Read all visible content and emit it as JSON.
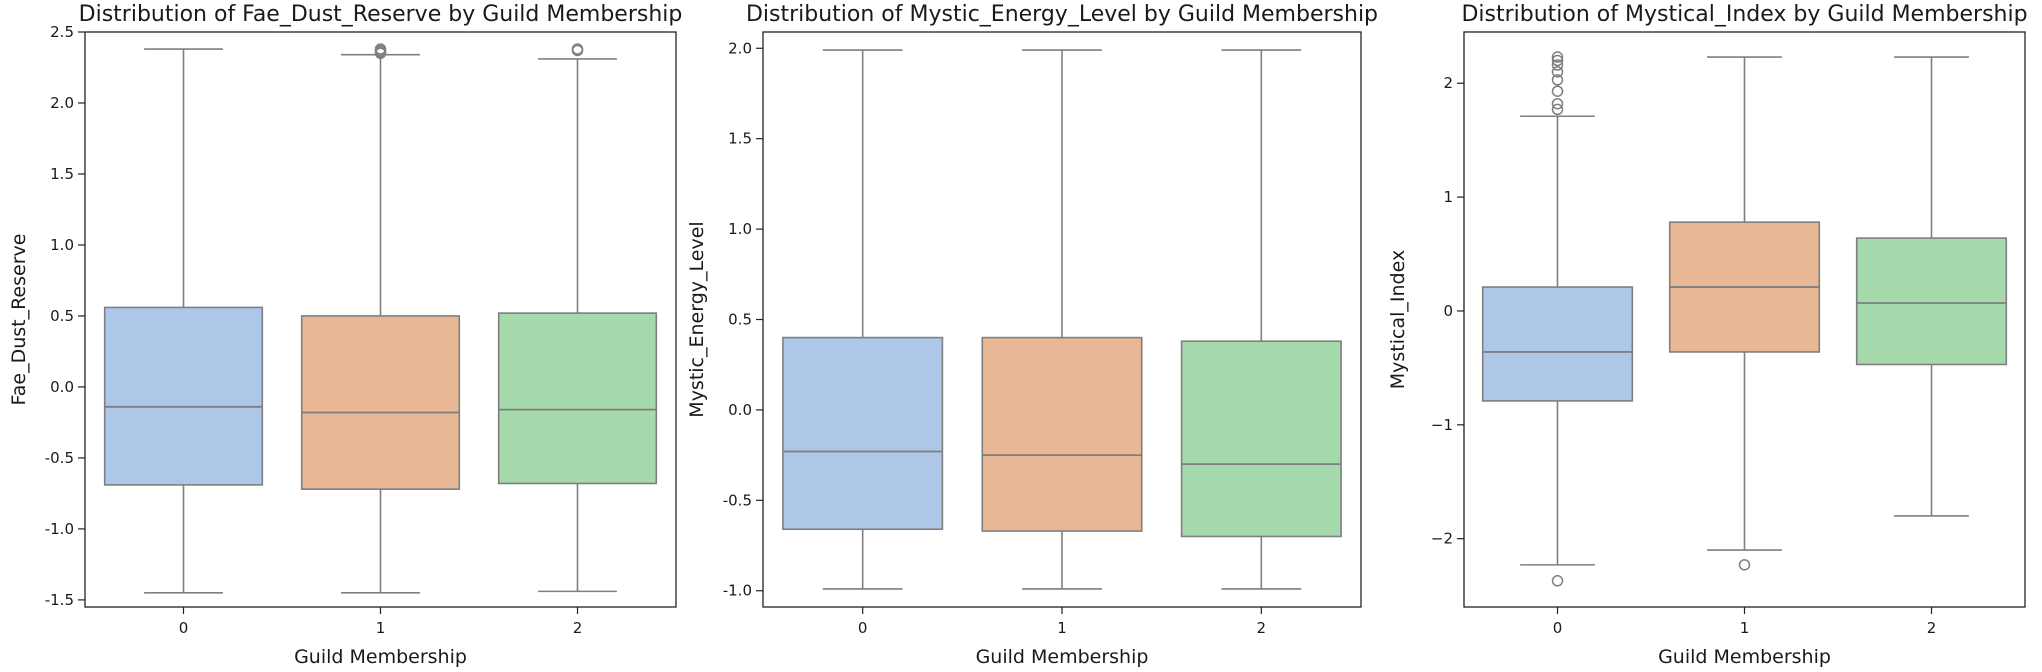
{
  "chart_data": [
    {
      "type": "box",
      "title": "Distribution of Fae_Dust_Reserve by Guild Membership",
      "xlabel": "Guild Membership",
      "ylabel": "Fae_Dust_Reserve",
      "categories": [
        "0",
        "1",
        "2"
      ],
      "ylim": [
        -1.55,
        2.5
      ],
      "yticks": [
        "-1.5",
        "-1.0",
        "-0.5",
        "0.0",
        "0.5",
        "1.0",
        "1.5",
        "2.0",
        "2.5"
      ],
      "ytick_values": [
        -1.5,
        -1.0,
        -0.5,
        0.0,
        0.5,
        1.0,
        1.5,
        2.0,
        2.5
      ],
      "boxes": [
        {
          "category": "0",
          "whisker_low": -1.45,
          "q1": -0.69,
          "median": -0.14,
          "q3": 0.56,
          "whisker_high": 2.38,
          "outliers": []
        },
        {
          "category": "1",
          "whisker_low": -1.45,
          "q1": -0.72,
          "median": -0.18,
          "q3": 0.5,
          "whisker_high": 2.34,
          "outliers": [
            2.35,
            2.36,
            2.37,
            2.38
          ]
        },
        {
          "category": "2",
          "whisker_low": -1.44,
          "q1": -0.68,
          "median": -0.16,
          "q3": 0.52,
          "whisker_high": 2.31,
          "outliers": [
            2.37,
            2.38
          ]
        }
      ],
      "colors": [
        "#aec7e8",
        "#e8b896",
        "#a6d9ab"
      ]
    },
    {
      "type": "box",
      "title": "Distribution of Mystic_Energy_Level by Guild Membership",
      "xlabel": "Guild Membership",
      "ylabel": "Mystic_Energy_Level",
      "categories": [
        "0",
        "1",
        "2"
      ],
      "ylim": [
        -1.09,
        2.09
      ],
      "yticks": [
        "-1.0",
        "-0.5",
        "0.0",
        "0.5",
        "1.0",
        "1.5",
        "2.0"
      ],
      "ytick_values": [
        -1.0,
        -0.5,
        0.0,
        0.5,
        1.0,
        1.5,
        2.0
      ],
      "boxes": [
        {
          "category": "0",
          "whisker_low": -0.99,
          "q1": -0.66,
          "median": -0.23,
          "q3": 0.4,
          "whisker_high": 1.99,
          "outliers": []
        },
        {
          "category": "1",
          "whisker_low": -0.99,
          "q1": -0.67,
          "median": -0.25,
          "q3": 0.4,
          "whisker_high": 1.99,
          "outliers": []
        },
        {
          "category": "2",
          "whisker_low": -0.99,
          "q1": -0.7,
          "median": -0.3,
          "q3": 0.38,
          "whisker_high": 1.99,
          "outliers": []
        }
      ],
      "colors": [
        "#aec7e8",
        "#e8b896",
        "#a6d9ab"
      ]
    },
    {
      "type": "box",
      "title": "Distribution of Mystical_Index by Guild Membership",
      "xlabel": "Guild Membership",
      "ylabel": "Mystical_Index",
      "categories": [
        "0",
        "1",
        "2"
      ],
      "ylim": [
        -2.6,
        2.45
      ],
      "yticks": [
        "−2",
        "−1",
        "0",
        "1",
        "2"
      ],
      "ytick_values": [
        -2,
        -1,
        0,
        1,
        2
      ],
      "boxes": [
        {
          "category": "0",
          "whisker_low": -2.23,
          "q1": -0.79,
          "median": -0.36,
          "q3": 0.21,
          "whisker_high": 1.71,
          "outliers": [
            -2.37,
            1.77,
            1.82,
            1.93,
            2.03,
            2.1,
            2.16,
            2.2,
            2.23
          ]
        },
        {
          "category": "1",
          "whisker_low": -2.1,
          "q1": -0.36,
          "median": 0.21,
          "q3": 0.78,
          "whisker_high": 2.23,
          "outliers": [
            -2.23
          ]
        },
        {
          "category": "2",
          "whisker_low": -1.8,
          "q1": -0.47,
          "median": 0.07,
          "q3": 0.64,
          "whisker_high": 2.23,
          "outliers": []
        }
      ],
      "colors": [
        "#aec7e8",
        "#e8b896",
        "#a6d9ab"
      ]
    }
  ]
}
